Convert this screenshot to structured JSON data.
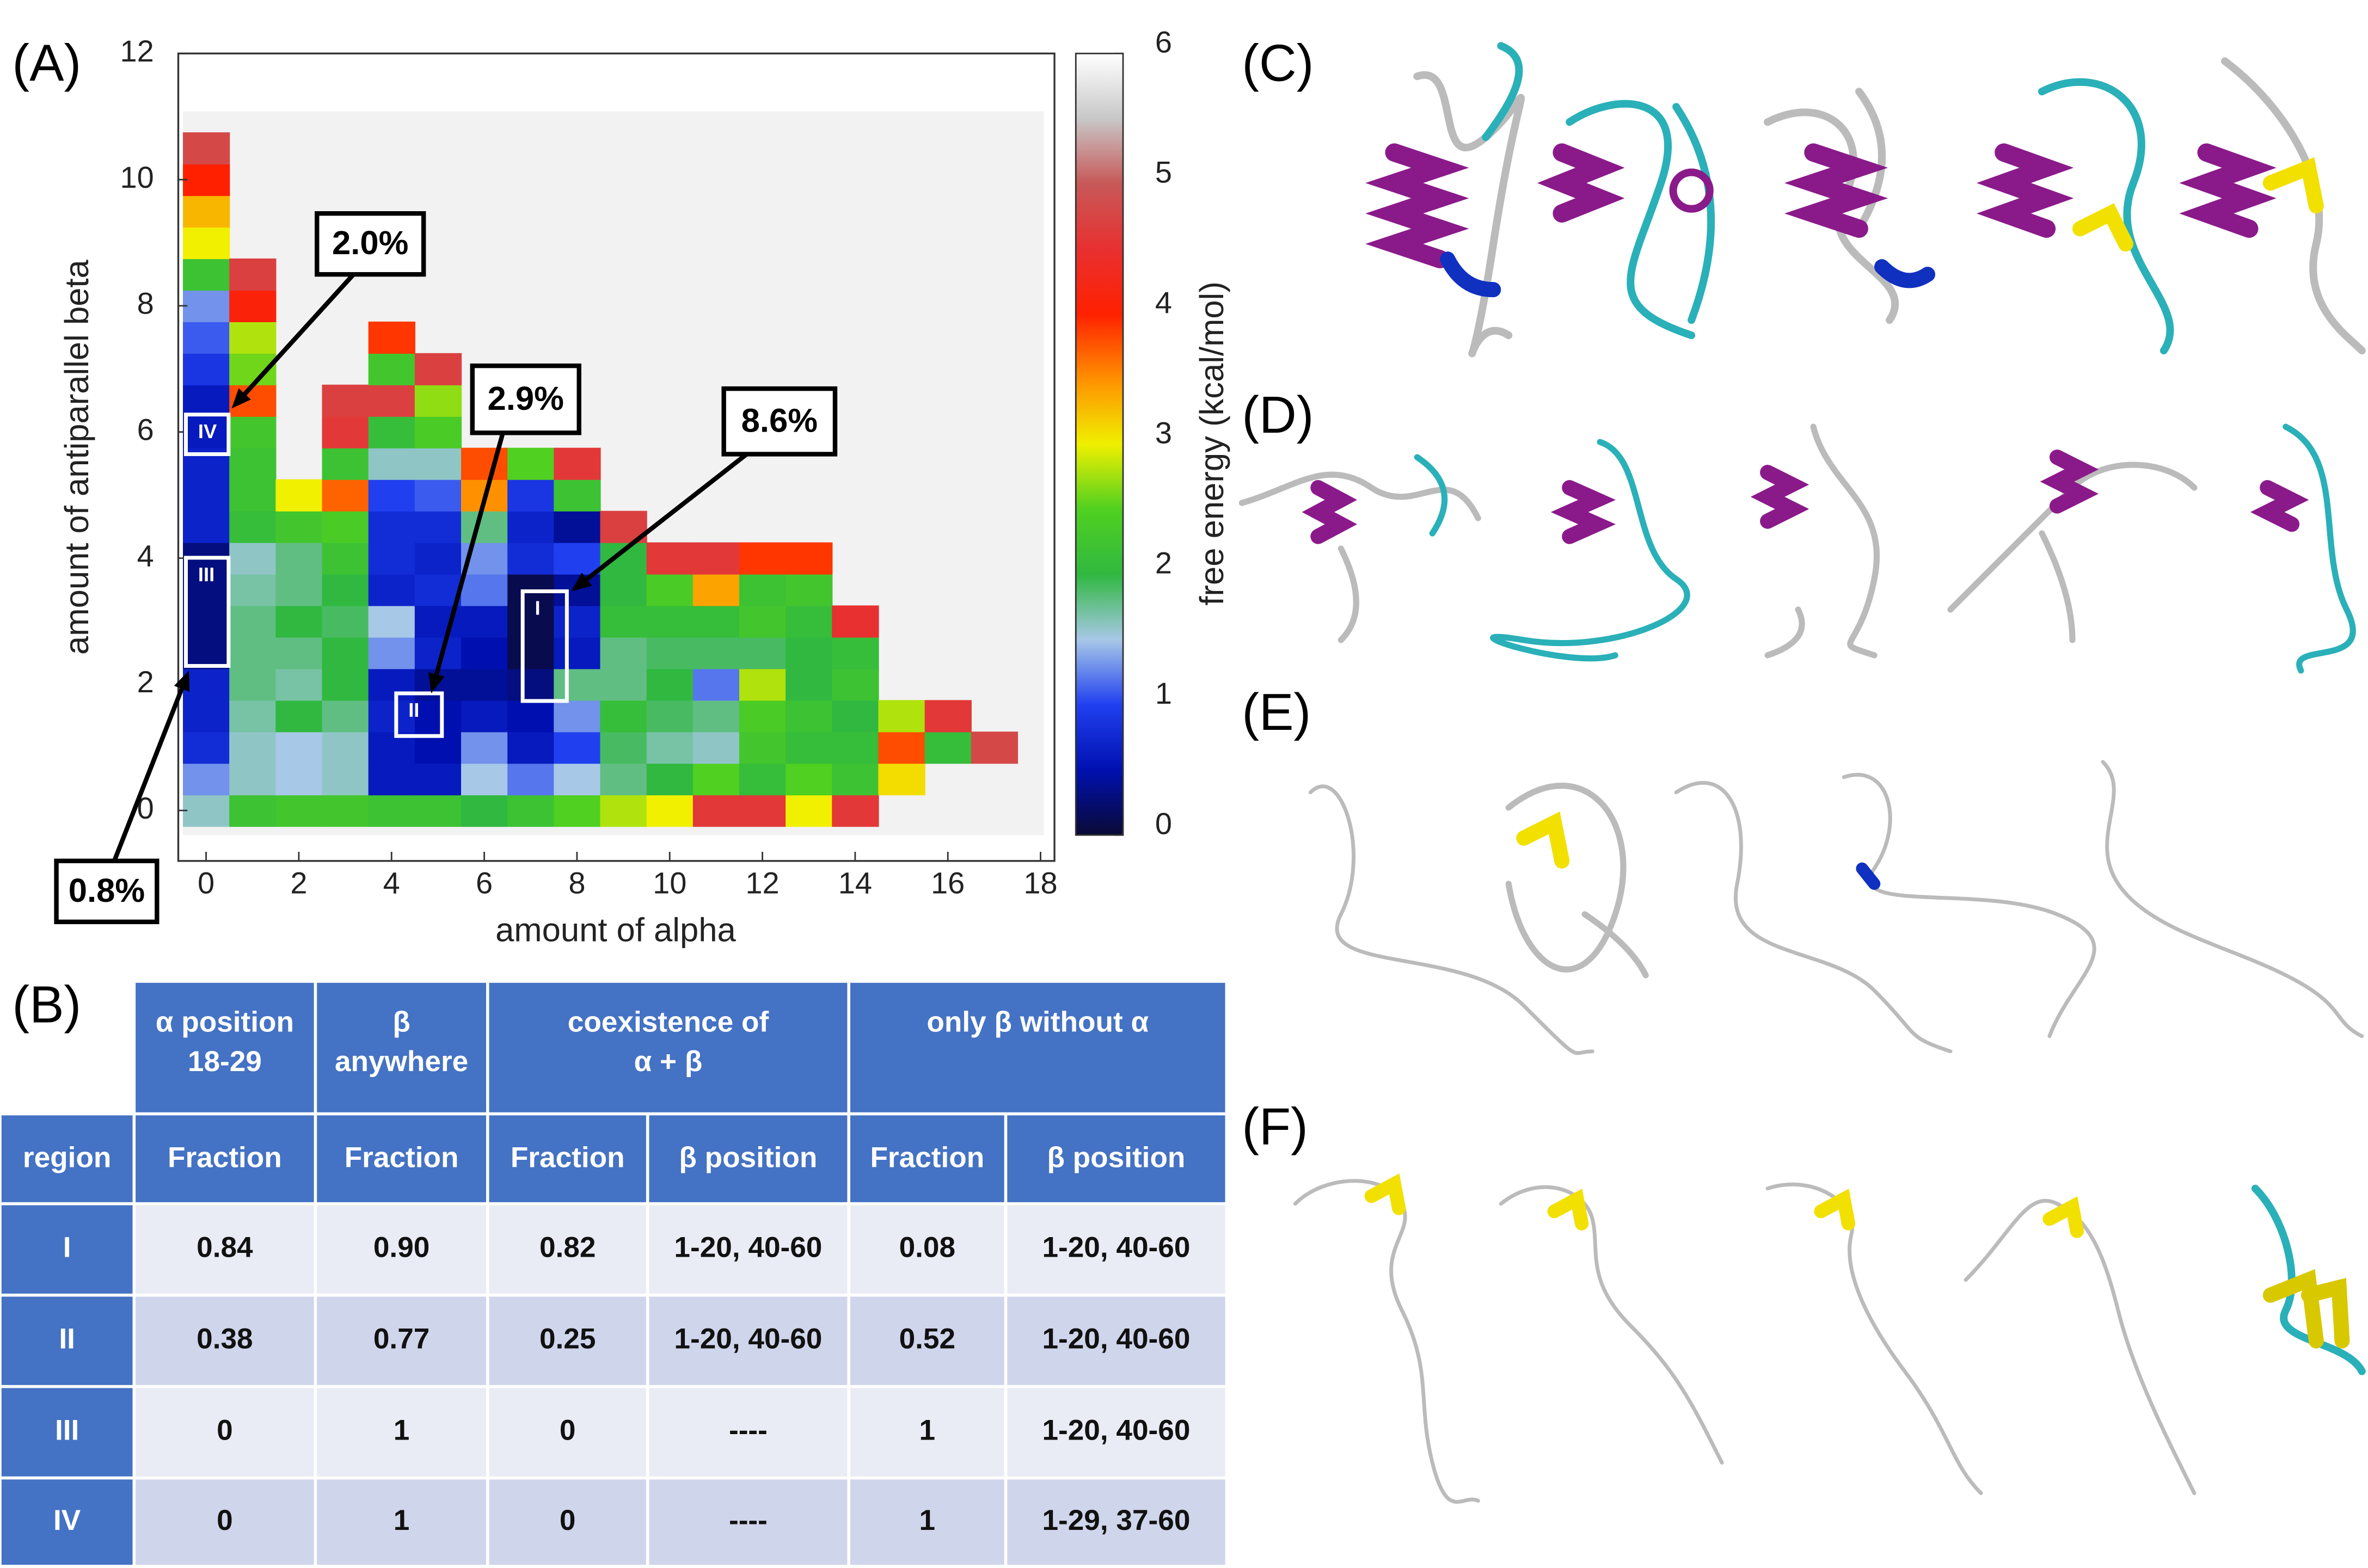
{
  "panel_labels": [
    "(A)",
    "(B)",
    "(C)",
    "(D)",
    "(E)",
    "(F)"
  ],
  "chart_data": {
    "type": "heatmap",
    "xlabel": "amount of alpha",
    "ylabel": "amount of antiparallel beta",
    "colorbar_label": "free energy (kcal/mol)",
    "x": [
      0,
      1,
      2,
      3,
      4,
      5,
      6,
      7,
      8,
      9,
      10,
      11,
      12,
      13,
      14,
      15,
      16,
      17,
      18
    ],
    "y": [
      0,
      0.5,
      1,
      1.5,
      2,
      2.5,
      3,
      3.5,
      4,
      4.5,
      5,
      5.5,
      6,
      6.5,
      7,
      7.5,
      8,
      8.5,
      9,
      9.5,
      10,
      10.5
    ],
    "z": [
      [
        1.6,
        1.3,
        0.8,
        0.7,
        0.7,
        0.3,
        0.3,
        0.3,
        0.3,
        0.7,
        0.7,
        0.7,
        0.6,
        0.6,
        0.9,
        1.1,
        1.3,
        2.2,
        3.0,
        3.3,
        4.0,
        4.8
      ],
      [
        2.2,
        1.6,
        1.6,
        1.7,
        1.8,
        1.8,
        1.8,
        1.7,
        1.6,
        2.1,
        2.2,
        2.2,
        2.3,
        3.8,
        2.6,
        2.8,
        4.1,
        4.7,
        null,
        null,
        null,
        null
      ],
      [
        2.3,
        1.5,
        1.5,
        2.0,
        1.7,
        1.8,
        2.0,
        1.8,
        1.8,
        2.3,
        3.0,
        null,
        null,
        null,
        null,
        null,
        null,
        null,
        null,
        null,
        null,
        null
      ],
      [
        2.3,
        1.6,
        1.6,
        1.8,
        2.0,
        2.0,
        1.9,
        2.0,
        2.2,
        2.4,
        3.7,
        2.2,
        4.6,
        4.7,
        null,
        null,
        null,
        null,
        null,
        null,
        null,
        null
      ],
      [
        2.2,
        0.6,
        0.6,
        0.7,
        0.6,
        1.3,
        1.5,
        0.7,
        0.8,
        0.8,
        1.0,
        1.6,
        2.1,
        4.7,
        2.3,
        3.9,
        null,
        null,
        null,
        null,
        null,
        null
      ],
      [
        2.2,
        0.6,
        0.5,
        0.5,
        0.4,
        0.7,
        0.6,
        0.8,
        0.7,
        0.8,
        1.1,
        1.6,
        2.4,
        2.7,
        4.7,
        null,
        null,
        null,
        null,
        null,
        null,
        null
      ],
      [
        2.0,
        1.5,
        1.3,
        0.6,
        0.4,
        0.5,
        0.6,
        1.2,
        1.3,
        1.8,
        3.5,
        3.8,
        null,
        null,
        null,
        null,
        null,
        null,
        null,
        null,
        null,
        null
      ],
      [
        2.2,
        1.2,
        0.6,
        0.5,
        0.3,
        0.1,
        0.1,
        0.1,
        0.8,
        0.7,
        0.9,
        2.5,
        null,
        null,
        null,
        null,
        null,
        null,
        null,
        null,
        null,
        null
      ],
      [
        2.5,
        1.5,
        1.0,
        1.3,
        1.8,
        0.6,
        0.7,
        0.4,
        1.0,
        0.4,
        2.2,
        4.6,
        null,
        null,
        null,
        null,
        null,
        null,
        null,
        null,
        null,
        null
      ],
      [
        2.8,
        1.8,
        1.9,
        2.1,
        1.8,
        1.8,
        2.1,
        2.0,
        2.0,
        4.7,
        null,
        null,
        null,
        null,
        null,
        null,
        null,
        null,
        null,
        null,
        null,
        null
      ],
      [
        3.0,
        2.0,
        1.7,
        1.9,
        2.0,
        1.9,
        2.1,
        2.4,
        4.6,
        null,
        null,
        null,
        null,
        null,
        null,
        null,
        null,
        null,
        null,
        null,
        null,
        null
      ],
      [
        4.6,
        2.5,
        1.6,
        1.8,
        1.2,
        1.9,
        2.1,
        3.4,
        4.6,
        null,
        null,
        null,
        null,
        null,
        null,
        null,
        null,
        null,
        null,
        null,
        null,
        null
      ],
      [
        4.6,
        2.1,
        2.3,
        2.4,
        2.8,
        1.9,
        2.3,
        2.2,
        3.9,
        null,
        null,
        null,
        null,
        null,
        null,
        null,
        null,
        null,
        null,
        null,
        null,
        null
      ],
      [
        3.0,
        2.5,
        2.1,
        2.2,
        2.0,
        2.0,
        2.1,
        2.3,
        3.9,
        null,
        null,
        null,
        null,
        null,
        null,
        null,
        null,
        null,
        null,
        null,
        null,
        null
      ],
      [
        4.6,
        2.2,
        2.1,
        2.0,
        2.2,
        2.1,
        4.5,
        null,
        null,
        null,
        null,
        null,
        null,
        null,
        null,
        null,
        null,
        null,
        null,
        null,
        null,
        null
      ],
      [
        null,
        3.1,
        3.8,
        2.8,
        null,
        null,
        null,
        null,
        null,
        null,
        null,
        null,
        null,
        null,
        null,
        null,
        null,
        null,
        null,
        null,
        null,
        null
      ],
      [
        null,
        null,
        2.1,
        4.6,
        null,
        null,
        null,
        null,
        null,
        null,
        null,
        null,
        null,
        null,
        null,
        null,
        null,
        null,
        null,
        null,
        null,
        null
      ],
      [
        null,
        null,
        4.8,
        null,
        null,
        null,
        null,
        null,
        null,
        null,
        null,
        null,
        null,
        null,
        null,
        null,
        null,
        null,
        null,
        null,
        null,
        null
      ],
      [
        null,
        null,
        null,
        null,
        null,
        null,
        null,
        null,
        null,
        null,
        null,
        null,
        null,
        null,
        null,
        null,
        null,
        null,
        null,
        null,
        null,
        null
      ]
    ],
    "xlim": [
      -0.6,
      18.3
    ],
    "ylim": [
      -0.8,
      12
    ],
    "xticks": [
      0,
      2,
      4,
      6,
      8,
      10,
      12,
      14,
      16,
      18
    ],
    "yticks": [
      0,
      2,
      4,
      6,
      8,
      10,
      12
    ],
    "zlim": [
      0,
      6
    ],
    "zticks": [
      0,
      1,
      2,
      3,
      4,
      5,
      6
    ],
    "colormap": [
      "#0a0a35",
      "#0010b0",
      "#2040f0",
      "#a8c8e8",
      "#30b840",
      "#50d020",
      "#f0f000",
      "#ff9000",
      "#ff2000",
      "#e83030",
      "#c85858",
      "#c8c8c8",
      "#ffffff"
    ],
    "regions": [
      "I",
      "II",
      "III",
      "IV"
    ],
    "annotations": [
      "2.0%",
      "2.9%",
      "8.6%",
      "0.8%"
    ]
  },
  "table": {
    "groups": [
      {
        "lines": [
          "α position",
          "18-29"
        ]
      },
      {
        "lines": [
          "β",
          "anywhere"
        ]
      },
      {
        "lines": [
          "coexistence of",
          "α + β"
        ]
      },
      {
        "lines": [
          "only β without α"
        ]
      }
    ],
    "columns": [
      "region",
      "Fraction",
      "Fraction",
      "Fraction",
      "β position",
      "Fraction",
      "β position"
    ],
    "rows": [
      [
        "I",
        "0.84",
        "0.90",
        "0.82",
        "1-20, 40-60",
        "0.08",
        "1-20, 40-60"
      ],
      [
        "II",
        "0.38",
        "0.77",
        "0.25",
        "1-20, 40-60",
        "0.52",
        "1-20, 40-60"
      ],
      [
        "III",
        "0",
        "1",
        "0",
        "----",
        "1",
        "1-20, 40-60"
      ],
      [
        "IV",
        "0",
        "1",
        "0",
        "----",
        "1",
        "1-29, 37-60"
      ]
    ]
  }
}
